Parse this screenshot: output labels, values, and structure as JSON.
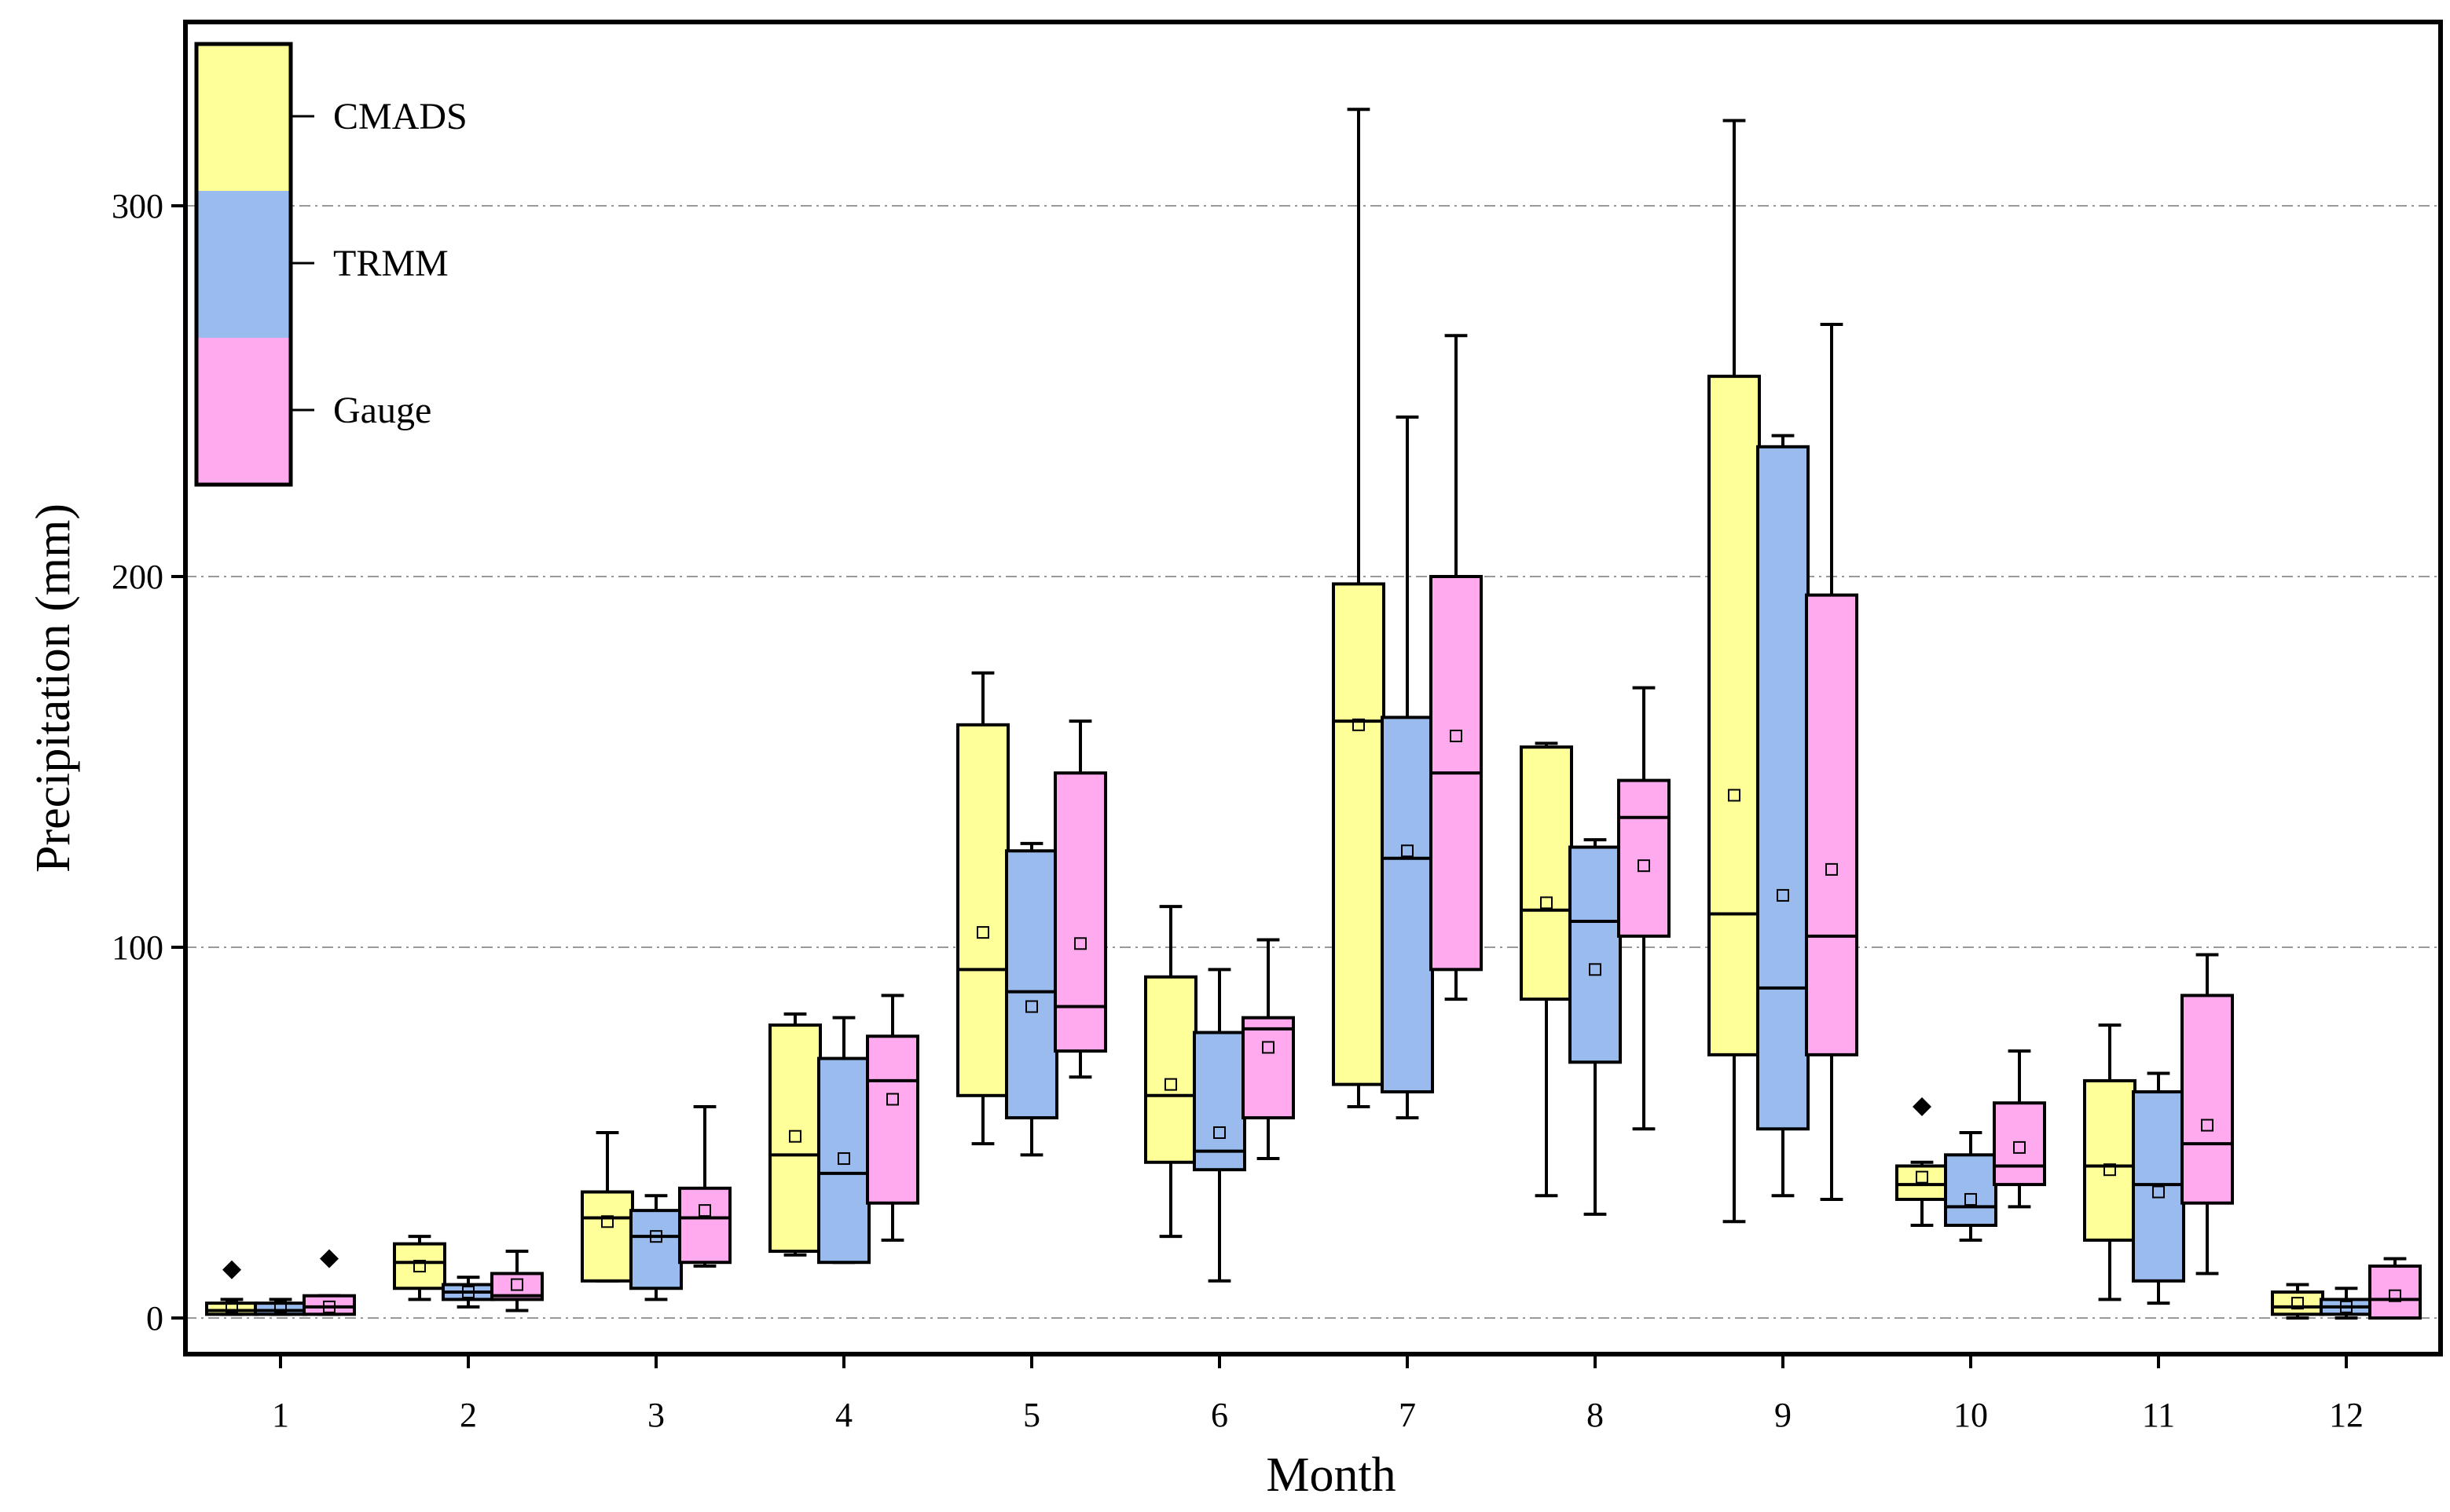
{
  "chart_data": {
    "type": "box",
    "title": "",
    "xlabel": "Month",
    "ylabel": "Precipitation (mm)",
    "categories": [
      "1",
      "2",
      "3",
      "4",
      "5",
      "6",
      "7",
      "8",
      "9",
      "10",
      "11",
      "12"
    ],
    "ylim": [
      -10,
      350
    ],
    "yticks": [
      0,
      100,
      200,
      300
    ],
    "grid": "horizontal dash-dot at y ticks",
    "legend_position": "top-left",
    "series": [
      {
        "name": "CMADS",
        "color": "#FFFF99",
        "boxes": [
          {
            "min": 1,
            "q1": 1,
            "median": 2,
            "q3": 4,
            "max": 5,
            "mean": 3,
            "outliers": [
              13
            ]
          },
          {
            "min": 5,
            "q1": 8,
            "median": 15,
            "q3": 20,
            "max": 22,
            "mean": 14,
            "outliers": []
          },
          {
            "min": 10,
            "q1": 10,
            "median": 27,
            "q3": 34,
            "max": 50,
            "mean": 26,
            "outliers": []
          },
          {
            "min": 17,
            "q1": 18,
            "median": 44,
            "q3": 79,
            "max": 82,
            "mean": 49,
            "outliers": []
          },
          {
            "min": 47,
            "q1": 60,
            "median": 94,
            "q3": 160,
            "max": 174,
            "mean": 104,
            "outliers": []
          },
          {
            "min": 22,
            "q1": 42,
            "median": 60,
            "q3": 92,
            "max": 111,
            "mean": 63,
            "outliers": []
          },
          {
            "min": 57,
            "q1": 63,
            "median": 161,
            "q3": 198,
            "max": 326,
            "mean": 160,
            "outliers": []
          },
          {
            "min": 33,
            "q1": 86,
            "median": 110,
            "q3": 154,
            "max": 155,
            "mean": 112,
            "outliers": []
          },
          {
            "min": 26,
            "q1": 71,
            "median": 109,
            "q3": 254,
            "max": 323,
            "mean": 141,
            "outliers": []
          },
          {
            "min": 25,
            "q1": 32,
            "median": 36,
            "q3": 41,
            "max": 42,
            "mean": 38,
            "outliers": [
              57
            ]
          },
          {
            "min": 5,
            "q1": 21,
            "median": 41,
            "q3": 64,
            "max": 79,
            "mean": 40,
            "outliers": []
          },
          {
            "min": 0,
            "q1": 1,
            "median": 3,
            "q3": 7,
            "max": 9,
            "mean": 4,
            "outliers": []
          }
        ]
      },
      {
        "name": "TRMM",
        "color": "#99BBEE",
        "boxes": [
          {
            "min": 1,
            "q1": 1,
            "median": 2,
            "q3": 4,
            "max": 5,
            "mean": 3,
            "outliers": []
          },
          {
            "min": 3,
            "q1": 5,
            "median": 7,
            "q3": 9,
            "max": 11,
            "mean": 7,
            "outliers": []
          },
          {
            "min": 5,
            "q1": 8,
            "median": 22,
            "q3": 29,
            "max": 33,
            "mean": 22,
            "outliers": []
          },
          {
            "min": 15,
            "q1": 15,
            "median": 39,
            "q3": 70,
            "max": 81,
            "mean": 43,
            "outliers": []
          },
          {
            "min": 44,
            "q1": 54,
            "median": 88,
            "q3": 126,
            "max": 128,
            "mean": 84,
            "outliers": []
          },
          {
            "min": 10,
            "q1": 40,
            "median": 45,
            "q3": 77,
            "max": 94,
            "mean": 50,
            "outliers": []
          },
          {
            "min": 54,
            "q1": 61,
            "median": 124,
            "q3": 162,
            "max": 243,
            "mean": 126,
            "outliers": []
          },
          {
            "min": 28,
            "q1": 69,
            "median": 107,
            "q3": 127,
            "max": 129,
            "mean": 94,
            "outliers": []
          },
          {
            "min": 33,
            "q1": 51,
            "median": 89,
            "q3": 235,
            "max": 238,
            "mean": 114,
            "outliers": []
          },
          {
            "min": 21,
            "q1": 25,
            "median": 30,
            "q3": 44,
            "max": 50,
            "mean": 32,
            "outliers": []
          },
          {
            "min": 4,
            "q1": 10,
            "median": 36,
            "q3": 61,
            "max": 66,
            "mean": 34,
            "outliers": []
          },
          {
            "min": 0,
            "q1": 1,
            "median": 3,
            "q3": 5,
            "max": 8,
            "mean": 3,
            "outliers": []
          }
        ]
      },
      {
        "name": "Gauge",
        "color": "#FFAAEE",
        "boxes": [
          {
            "min": 1,
            "q1": 1,
            "median": 3,
            "q3": 6,
            "max": 6,
            "mean": 3,
            "outliers": [
              16
            ]
          },
          {
            "min": 2,
            "q1": 5,
            "median": 6,
            "q3": 12,
            "max": 18,
            "mean": 9,
            "outliers": []
          },
          {
            "min": 14,
            "q1": 15,
            "median": 27,
            "q3": 35,
            "max": 57,
            "mean": 29,
            "outliers": []
          },
          {
            "min": 21,
            "q1": 31,
            "median": 64,
            "q3": 76,
            "max": 87,
            "mean": 59,
            "outliers": []
          },
          {
            "min": 65,
            "q1": 72,
            "median": 84,
            "q3": 147,
            "max": 161,
            "mean": 101,
            "outliers": []
          },
          {
            "min": 43,
            "q1": 54,
            "median": 78,
            "q3": 81,
            "max": 102,
            "mean": 73,
            "outliers": []
          },
          {
            "min": 86,
            "q1": 94,
            "median": 147,
            "q3": 200,
            "max": 265,
            "mean": 157,
            "outliers": []
          },
          {
            "min": 51,
            "q1": 103,
            "median": 135,
            "q3": 145,
            "max": 170,
            "mean": 122,
            "outliers": []
          },
          {
            "min": 32,
            "q1": 71,
            "median": 103,
            "q3": 195,
            "max": 268,
            "mean": 121,
            "outliers": []
          },
          {
            "min": 30,
            "q1": 36,
            "median": 41,
            "q3": 58,
            "max": 72,
            "mean": 46,
            "outliers": []
          },
          {
            "min": 12,
            "q1": 31,
            "median": 47,
            "q3": 87,
            "max": 98,
            "mean": 52,
            "outliers": []
          },
          {
            "min": 0,
            "q1": 0,
            "median": 5,
            "q3": 14,
            "max": 16,
            "mean": 6,
            "outliers": []
          }
        ]
      }
    ]
  }
}
